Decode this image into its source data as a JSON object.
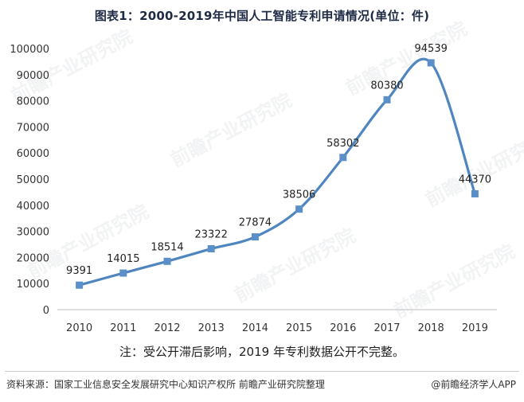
{
  "header": {
    "title": "图表1：2000-2019年中国人工智能专利申请情况(单位：件)"
  },
  "note": "注：受公开滞后影响，2019 年专利数据公开不完整。",
  "footer": {
    "source": "资料来源：国家工业信息安全发展研究中心知识产权所 前瞻产业研究院整理",
    "credit": "@前瞻经济学人APP"
  },
  "watermark": "前瞻产业研究院",
  "colors": {
    "line": "#4f86c0",
    "marker": "#5b8fc7",
    "axis": "#bfbfbf"
  },
  "chart_data": {
    "type": "line",
    "title": "图表1：2000-2019年中国人工智能专利申请情况(单位：件)",
    "xlabel": "",
    "ylabel": "",
    "x": [
      "2010",
      "2011",
      "2012",
      "2013",
      "2014",
      "2015",
      "2016",
      "2017",
      "2018",
      "2019"
    ],
    "series": [
      {
        "values": [
          9391,
          14015,
          18514,
          23322,
          27874,
          38506,
          58302,
          80380,
          94539,
          44370
        ]
      }
    ],
    "data_labels": [
      "9391",
      "14015",
      "18514",
      "23322",
      "27874",
      "38506",
      "58302",
      "80380",
      "94539",
      "44370"
    ],
    "ylim": [
      0,
      100000
    ],
    "y_ticks": [
      0,
      10000,
      20000,
      30000,
      40000,
      50000,
      60000,
      70000,
      80000,
      90000,
      100000
    ],
    "y_tick_labels": [
      "0",
      "10000",
      "20000",
      "30000",
      "40000",
      "50000",
      "60000",
      "70000",
      "80000",
      "90000",
      "100000"
    ],
    "grid": false,
    "smooth": true,
    "marker": "square"
  }
}
